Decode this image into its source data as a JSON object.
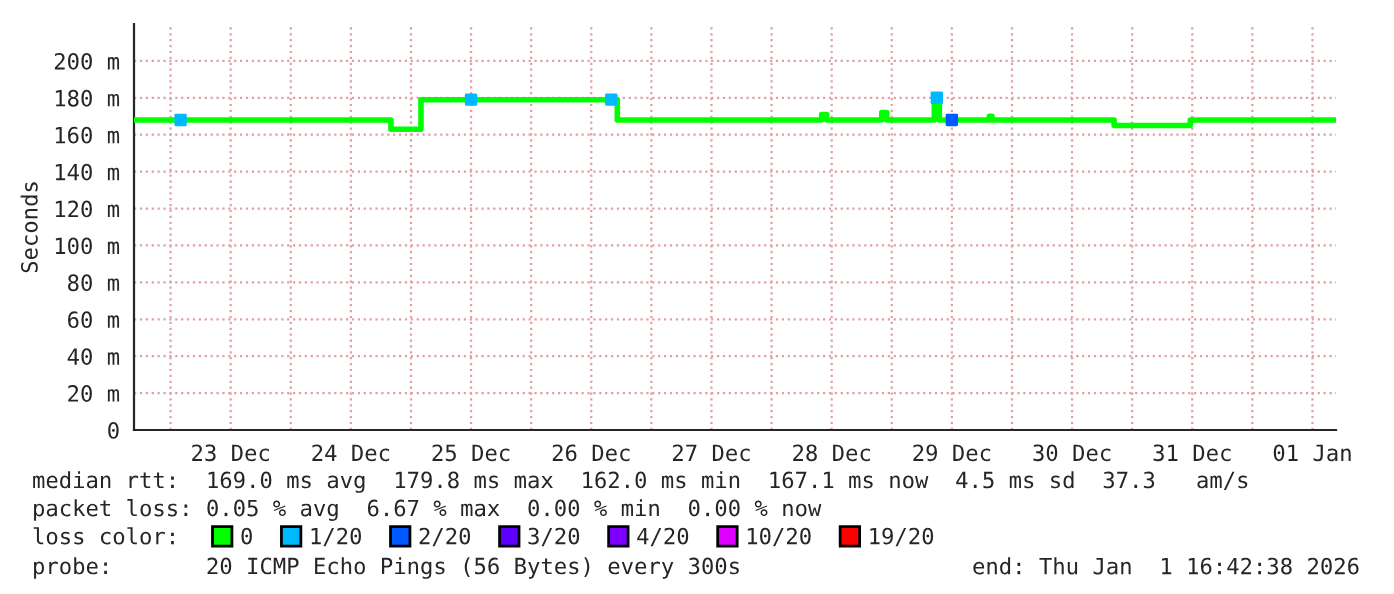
{
  "chart_data": {
    "type": "step",
    "ylabel": "Seconds",
    "xlim": [
      "2025-12-22T16:42",
      "2026-01-01T16:42"
    ],
    "xticks": [
      {
        "value": "2025-12-23T00:00",
        "label": null
      },
      {
        "value": "2025-12-23T12:00",
        "label": "23 Dec"
      },
      {
        "value": "2025-12-24T00:00",
        "label": null
      },
      {
        "value": "2025-12-24T12:00",
        "label": "24 Dec"
      },
      {
        "value": "2025-12-25T00:00",
        "label": null
      },
      {
        "value": "2025-12-25T12:00",
        "label": "25 Dec"
      },
      {
        "value": "2025-12-26T00:00",
        "label": null
      },
      {
        "value": "2025-12-26T12:00",
        "label": "26 Dec"
      },
      {
        "value": "2025-12-27T00:00",
        "label": null
      },
      {
        "value": "2025-12-27T12:00",
        "label": "27 Dec"
      },
      {
        "value": "2025-12-28T00:00",
        "label": null
      },
      {
        "value": "2025-12-28T12:00",
        "label": "28 Dec"
      },
      {
        "value": "2025-12-29T00:00",
        "label": null
      },
      {
        "value": "2025-12-29T12:00",
        "label": "29 Dec"
      },
      {
        "value": "2025-12-30T00:00",
        "label": null
      },
      {
        "value": "2025-12-30T12:00",
        "label": "30 Dec"
      },
      {
        "value": "2025-12-31T00:00",
        "label": null
      },
      {
        "value": "2025-12-31T12:00",
        "label": "31 Dec"
      },
      {
        "value": "2026-01-01T00:00",
        "label": null
      },
      {
        "value": "2026-01-01T12:00",
        "label": "01 Jan"
      }
    ],
    "ylim": [
      0,
      220
    ],
    "yticks": [
      0,
      {
        "value": 20,
        "label": "20 m"
      },
      {
        "value": 40,
        "label": "40 m"
      },
      {
        "value": 60,
        "label": "60 m"
      },
      {
        "value": 80,
        "label": "80 m"
      },
      {
        "value": 100,
        "label": "100 m"
      },
      {
        "value": 120,
        "label": "120 m"
      },
      {
        "value": 140,
        "label": "140 m"
      },
      {
        "value": 160,
        "label": "160 m"
      },
      {
        "value": 180,
        "label": "180 m"
      },
      {
        "value": 200,
        "label": "200 m"
      }
    ],
    "grid": true,
    "legend": "bottom",
    "legend_title": "loss color:",
    "series": [
      {
        "name": "0",
        "color": "#00ff00",
        "x": [
          "2025-12-22T16:42",
          "2025-12-24T20:00",
          "2025-12-25T02:00",
          "2025-12-26T17:12",
          "2025-12-28T10:00",
          "2025-12-28T11:00",
          "2025-12-28T22:00",
          "2025-12-28T23:00",
          "2025-12-29T08:30",
          "2025-12-29T09:30",
          "2025-12-29T19:30",
          "2025-12-29T20:00",
          "2025-12-30T20:24",
          "2025-12-31T11:36",
          "2026-01-01T16:42"
        ],
        "values": [
          168,
          163,
          179,
          168,
          171,
          168,
          172,
          168,
          180,
          168,
          170,
          168,
          165,
          168,
          168
        ]
      },
      {
        "name": "1/20",
        "color": "#00b8ff",
        "type": "scatter",
        "marker": "square",
        "x": [
          "2025-12-23T02:00",
          "2025-12-25T12:00",
          "2025-12-26T16:00",
          "2025-12-29T09:00"
        ],
        "values": [
          168,
          179,
          179,
          180
        ]
      },
      {
        "name": "2/20",
        "color": "#0059ff",
        "type": "scatter",
        "marker": "square",
        "x": [
          "2025-12-29T12:00"
        ],
        "values": [
          168
        ]
      },
      {
        "name": "3/20",
        "color": "#5e00ff",
        "type": "scatter"
      },
      {
        "name": "4/20",
        "color": "#7e00ff",
        "type": "scatter"
      },
      {
        "name": "10/20",
        "color": "#dd00ff",
        "type": "scatter"
      },
      {
        "name": "19/20",
        "color": "#ff0000",
        "type": "scatter"
      }
    ],
    "annotations": [
      "median rtt:  169.0 ms avg  179.8 ms max  162.0 ms min  167.1 ms now  4.5 ms sd  37.3   am/s",
      "packet loss: 0.05 % avg  6.67 % max  0.00 % min  0.00 % now",
      "probe:       20 ICMP Echo Pings (56 Bytes) every 300s",
      "end: Thu Jan  1 16:42:38 2026"
    ]
  }
}
